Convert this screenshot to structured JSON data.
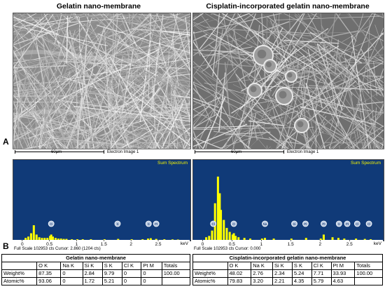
{
  "panels": {
    "a_label": "A",
    "b_label": "B"
  },
  "sem": [
    {
      "header": "Gelatin nano-membrane",
      "scale": "60μm",
      "caption": "Electron Image 1"
    },
    {
      "header": "Cisplatin-incorporated gelatin nano-membrane",
      "scale": "60μm",
      "caption": "Electron Image 1"
    }
  ],
  "spectra": {
    "title": "Sum Spectrum",
    "tick_labels": [
      "0",
      "0.5",
      "1",
      "1.5",
      "2",
      "2.5"
    ],
    "unit": "keV",
    "left_footer": "Full Scale 102953 cts Cursor: 2.860  (1204 cts)",
    "right_footer": "Full Scale 102953 cts Cursor: 0.000"
  },
  "chart_data": [
    {
      "type": "bar",
      "title": "Sum Spectrum",
      "xlabel": "keV",
      "xlim": [
        -0.1,
        2.95
      ],
      "x": [
        0.05,
        0.1,
        0.15,
        0.2,
        0.25,
        0.3,
        0.35,
        0.4,
        0.45,
        0.5,
        0.52,
        0.55,
        0.6,
        0.65,
        0.7,
        0.75,
        0.8,
        0.9,
        1.0,
        1.1,
        1.25,
        1.5,
        1.75,
        2.0,
        2.2,
        2.3,
        2.35,
        2.45,
        2.6,
        2.75,
        2.85
      ],
      "y": [
        3,
        5,
        10,
        22,
        8,
        4,
        3,
        3,
        3,
        6,
        8,
        5,
        3,
        2,
        2,
        1.5,
        1.5,
        1,
        1,
        1,
        1,
        1,
        1.5,
        1,
        1,
        2,
        2.5,
        1.5,
        1,
        0.8,
        0.6
      ],
      "ylim": [
        0,
        100
      ],
      "peak_labels": [
        {
          "x": 0.52,
          "label": "O"
        },
        {
          "x": 1.74,
          "label": "S"
        },
        {
          "x": 2.31,
          "label": "S"
        },
        {
          "x": 2.45,
          "label": "Pt"
        }
      ]
    },
    {
      "type": "bar",
      "title": "Sum Spectrum",
      "xlabel": "keV",
      "xlim": [
        -0.1,
        2.95
      ],
      "x": [
        0.05,
        0.1,
        0.15,
        0.2,
        0.25,
        0.28,
        0.3,
        0.35,
        0.4,
        0.45,
        0.5,
        0.52,
        0.55,
        0.6,
        0.7,
        0.8,
        1.0,
        1.05,
        1.2,
        1.5,
        1.75,
        2.0,
        2.05,
        2.2,
        2.3,
        2.4,
        2.6,
        2.75,
        2.85
      ],
      "y": [
        4,
        6,
        14,
        55,
        95,
        70,
        45,
        30,
        18,
        12,
        8,
        10,
        6,
        4,
        3,
        2,
        2,
        3,
        2,
        2,
        3,
        2,
        8,
        4,
        3,
        2,
        2,
        1.5,
        1
      ],
      "ylim": [
        0,
        100
      ],
      "peak_labels": [
        {
          "x": 0.17,
          "label": "Cl"
        },
        {
          "x": 0.52,
          "label": "O"
        },
        {
          "x": 1.05,
          "label": "Na"
        },
        {
          "x": 1.55,
          "label": "Si"
        },
        {
          "x": 1.74,
          "label": "Pt"
        },
        {
          "x": 2.05,
          "label": "Pt"
        },
        {
          "x": 2.31,
          "label": "S"
        },
        {
          "x": 2.45,
          "label": "Pt"
        },
        {
          "x": 2.62,
          "label": "Cl"
        },
        {
          "x": 2.82,
          "label": "Cl"
        }
      ]
    },
    {
      "type": "table",
      "title": "Gelatin nano-membrane",
      "columns": [
        "",
        "O K",
        "Na K",
        "Si K",
        "S K",
        "Cl K",
        "Pt M",
        "Totals"
      ],
      "rows": [
        [
          "Weight%",
          "87.35",
          "0",
          "2.84",
          "9.79",
          "0",
          "0",
          "100.00"
        ],
        [
          "Atomic%",
          "93.06",
          "0",
          "1.72",
          "5.21",
          "0",
          "0",
          ""
        ]
      ]
    },
    {
      "type": "table",
      "title": "Cisplatin-incorporated gelatin nano-membrane",
      "columns": [
        "",
        "O K",
        "Na K",
        "Si K",
        "S K",
        "Cl K",
        "Pt M",
        "Totals"
      ],
      "rows": [
        [
          "Weight%",
          "48.02",
          "2.76",
          "2.34",
          "5.24",
          "7.71",
          "33.93",
          "100.00"
        ],
        [
          "Atomic%",
          "79.83",
          "3.20",
          "2.21",
          "4.35",
          "5.79",
          "4.63",
          ""
        ]
      ]
    }
  ]
}
